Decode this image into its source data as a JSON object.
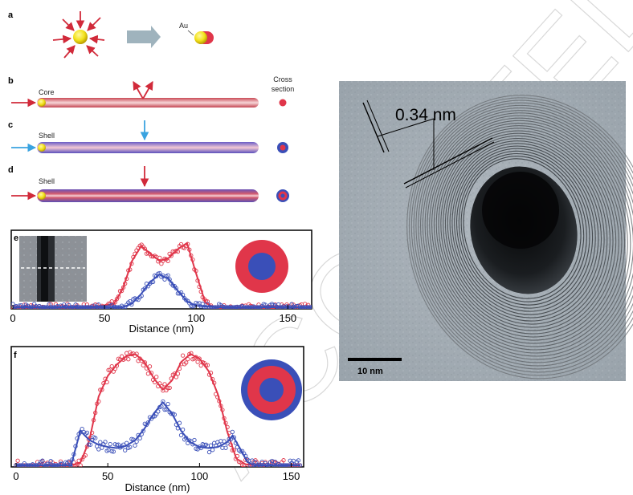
{
  "watermark": "ACCEPTED MANUSCRIPT",
  "panels": {
    "a": {
      "label": "a",
      "au_label": "Au"
    },
    "b": {
      "label": "b",
      "title": "Core"
    },
    "c": {
      "label": "c",
      "title": "Shell"
    },
    "d": {
      "label": "d",
      "title": "Shell"
    },
    "cross_section": [
      "Cross",
      "section"
    ],
    "e": {
      "label": "e"
    },
    "f": {
      "label": "f"
    }
  },
  "tem": {
    "spacing_label": "0.34 nm",
    "scalebar_label": "10 nm"
  },
  "colors": {
    "red": "#e0364a",
    "blue": "#3a4fb8",
    "gold": "#f2e11a",
    "arrow_gray": "#9fb3bd"
  },
  "chart_data": [
    {
      "type": "scatter",
      "panel": "e",
      "xlabel": "Distance (nm)",
      "ylabel": "",
      "xlim": [
        0,
        163
      ],
      "ylim": [
        0,
        1
      ],
      "xticks": [
        0,
        50,
        100,
        150
      ],
      "series": [
        {
          "color": "#e0364a",
          "x": [
            0,
            20,
            40,
            55,
            60,
            65,
            70,
            75,
            80,
            85,
            90,
            95,
            100,
            105,
            110,
            130,
            163
          ],
          "values": [
            0,
            0,
            0,
            0.04,
            0.25,
            0.62,
            0.82,
            0.72,
            0.62,
            0.66,
            0.78,
            0.86,
            0.45,
            0.06,
            0,
            0,
            0
          ]
        },
        {
          "color": "#3a4fb8",
          "x": [
            0,
            40,
            60,
            65,
            70,
            75,
            80,
            85,
            90,
            95,
            100,
            110,
            163
          ],
          "values": [
            0,
            0,
            0,
            0.05,
            0.18,
            0.34,
            0.44,
            0.38,
            0.22,
            0.08,
            0.02,
            0,
            0
          ]
        }
      ]
    },
    {
      "type": "scatter",
      "panel": "f",
      "xlabel": "Distance (nm)",
      "ylabel": "",
      "xlim": [
        0,
        155
      ],
      "ylim": [
        0,
        1
      ],
      "xticks": [
        0,
        50,
        100,
        150
      ],
      "series": [
        {
          "color": "#e0364a",
          "x": [
            0,
            30,
            35,
            40,
            45,
            50,
            55,
            60,
            65,
            70,
            75,
            80,
            85,
            90,
            95,
            100,
            105,
            110,
            115,
            120,
            125,
            130,
            155
          ],
          "values": [
            0,
            0,
            0.02,
            0.22,
            0.6,
            0.78,
            0.88,
            0.95,
            0.97,
            0.9,
            0.76,
            0.66,
            0.74,
            0.9,
            0.97,
            0.93,
            0.82,
            0.62,
            0.3,
            0.06,
            0.01,
            0,
            0
          ]
        },
        {
          "color": "#3a4fb8",
          "x": [
            0,
            30,
            35,
            40,
            45,
            50,
            55,
            60,
            65,
            70,
            75,
            80,
            85,
            90,
            95,
            100,
            105,
            110,
            115,
            118,
            122,
            126,
            130,
            155
          ],
          "values": [
            0,
            0,
            0.3,
            0.22,
            0.18,
            0.16,
            0.15,
            0.17,
            0.22,
            0.32,
            0.45,
            0.55,
            0.45,
            0.3,
            0.2,
            0.16,
            0.15,
            0.16,
            0.2,
            0.26,
            0.15,
            0.03,
            0,
            0
          ]
        }
      ]
    }
  ]
}
